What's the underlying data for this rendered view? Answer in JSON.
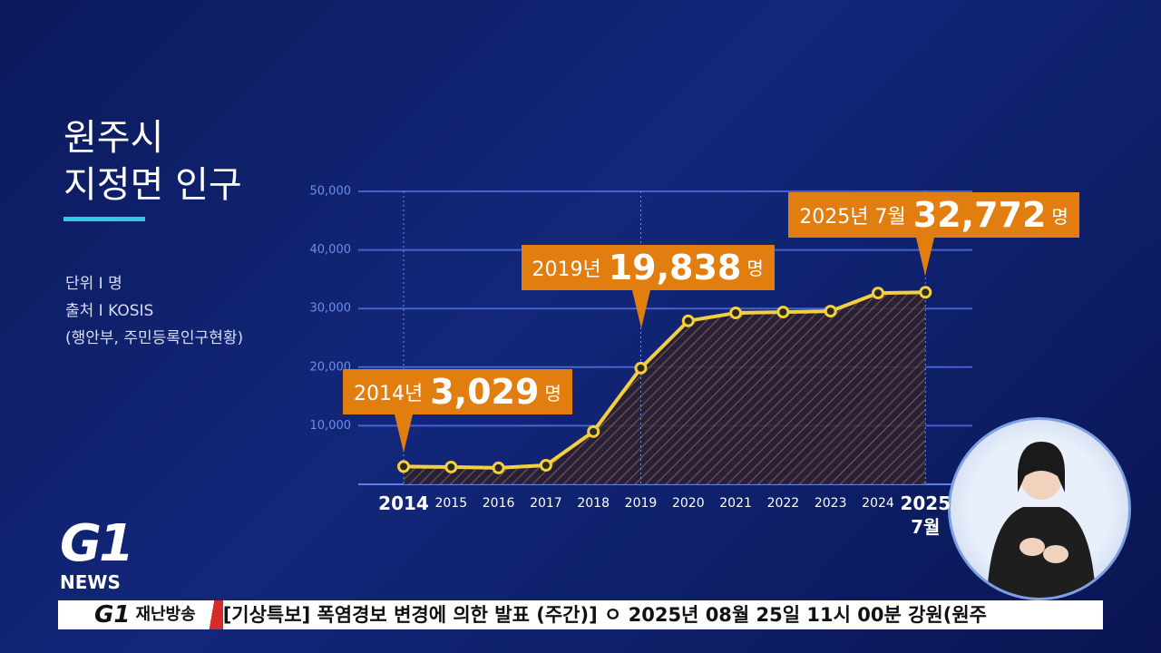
{
  "chart_data": {
    "type": "line",
    "title": [
      "원주시",
      "지정면 인구"
    ],
    "notes": [
      "단위 I 명",
      "출처 I KOSIS",
      "(행안부, 주민등록인구현황)"
    ],
    "categories": [
      "2014",
      "2015",
      "2016",
      "2017",
      "2018",
      "2019",
      "2020",
      "2021",
      "2022",
      "2023",
      "2024",
      "2025\n7월"
    ],
    "series": [
      {
        "color": "#f4d03f",
        "values": [
          3029,
          2950,
          2800,
          3250,
          9000,
          19838,
          27900,
          29250,
          29400,
          29550,
          32650,
          32772
        ],
        "value_labels": [
          "3,029",
          null,
          null,
          null,
          null,
          "19,838",
          null,
          null,
          null,
          null,
          null,
          "32,772"
        ],
        "label_prefixes": [
          "2014년",
          null,
          null,
          null,
          null,
          "2019년",
          null,
          null,
          null,
          null,
          null,
          "2025년 7월"
        ]
      }
    ],
    "value_label_unit": "명",
    "ylim": [
      0,
      50000
    ],
    "yticks": [
      {
        "value": 10000,
        "label": "10,000"
      },
      {
        "value": 20000,
        "label": "20,000"
      },
      {
        "value": 30000,
        "label": "30,000"
      },
      {
        "value": 40000,
        "label": "40,000"
      },
      {
        "value": 50000,
        "label": "50,000"
      }
    ],
    "grid": true
  },
  "logo": {
    "brand": "G1",
    "sub": "NEWS"
  },
  "ticker": {
    "brand": "G1",
    "label": "재난방송",
    "text": "[기상특보] 폭염경보 변경에 의한 발표 (주간)] ㅇ 2025년 08월 25일 11시 00분 강원(원주"
  }
}
